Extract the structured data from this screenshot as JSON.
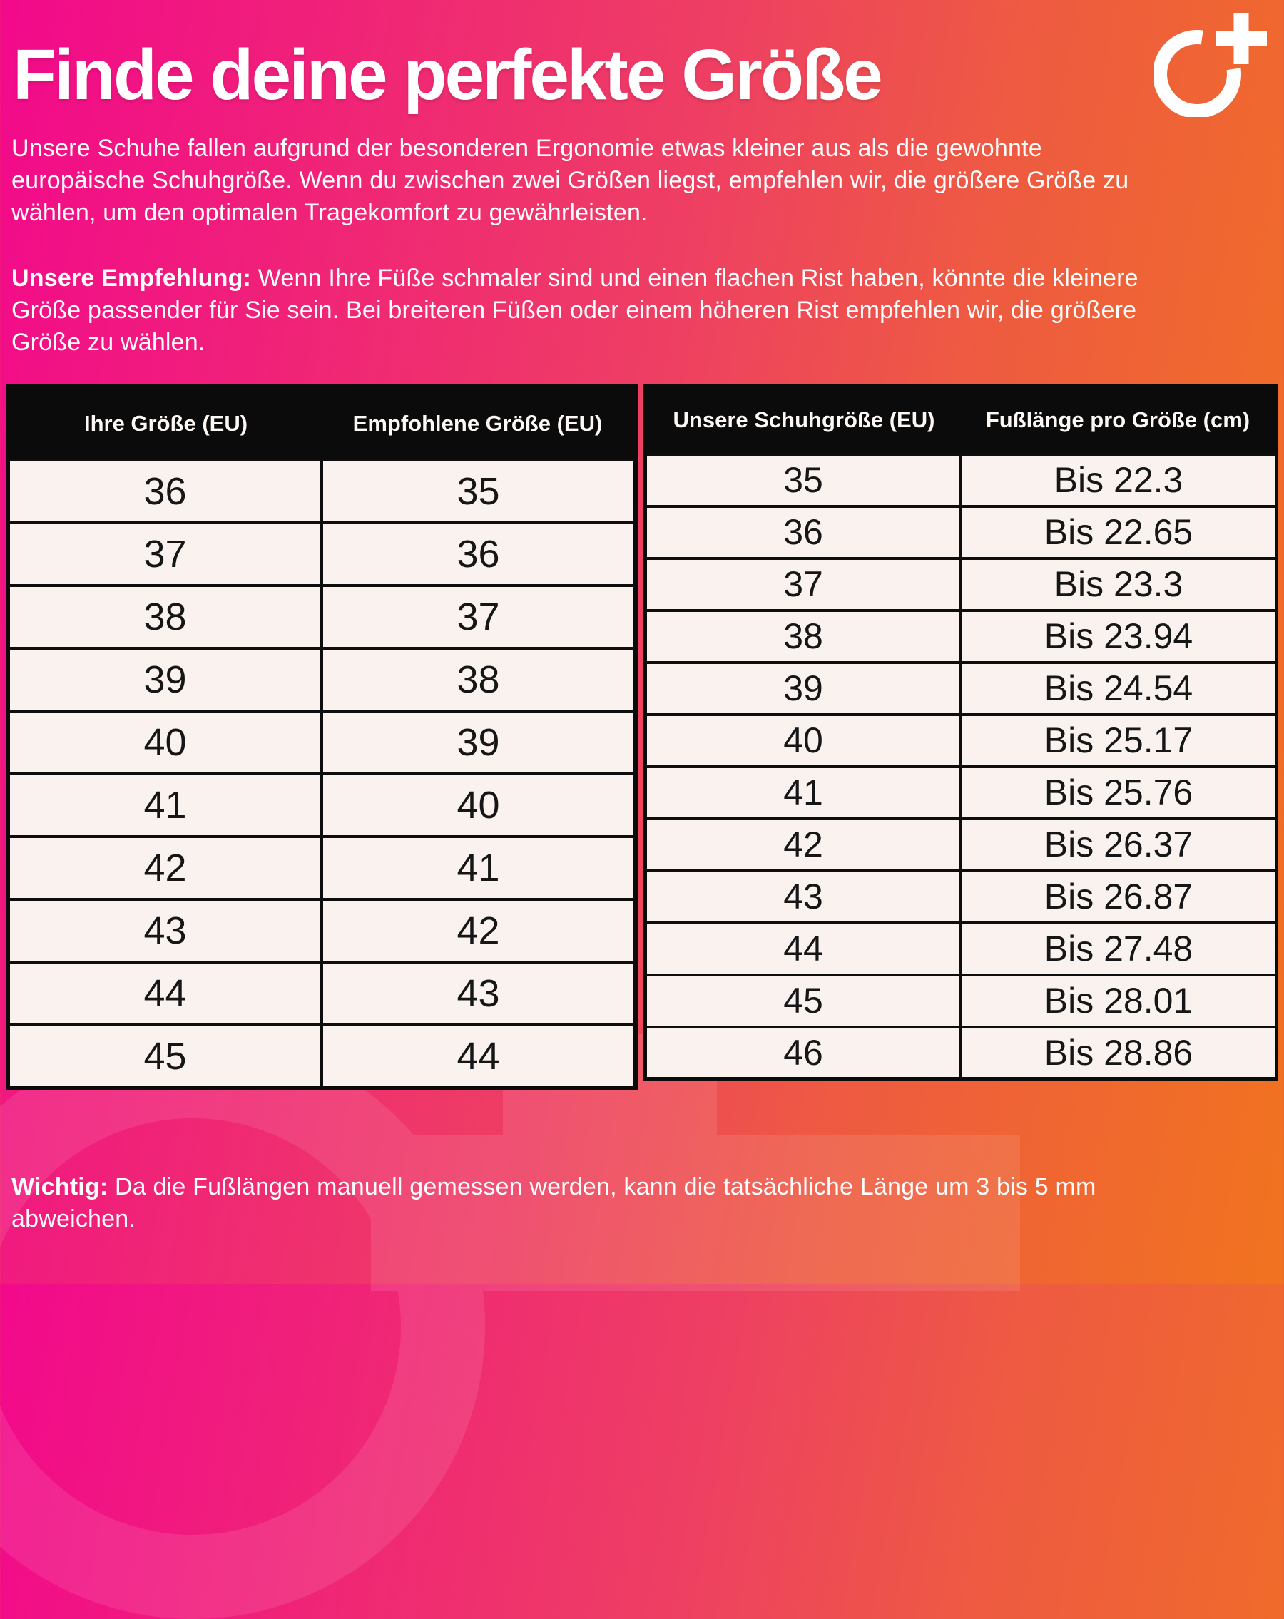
{
  "page": {
    "title": "Finde deine perfekte Größe",
    "intro": "Unsere Schuhe fallen aufgrund der besonderen Ergonomie etwas kleiner aus als die gewohnte europäische Schuhgröße. Wenn du zwischen zwei Größen liegst, empfehlen wir, die größere Größe zu wählen, um den optimalen Tragekomfort zu gewährleisten.",
    "recommendation_label": "Unsere Empfehlung:",
    "recommendation_text": " Wenn Ihre Füße schmaler sind und einen flachen Rist haben, könnte die kleinere Größe passender für Sie sein. Bei breiteren Füßen oder einem höheren Rist empfehlen wir, die größere Größe zu wählen.",
    "note_label": "Wichtig:",
    "note_text": " Da die Fußlängen manuell gemessen werden, kann die tatsächliche Länge um 3 bis 5 mm abweichen."
  },
  "logo": {
    "icon": "o-plus-logo",
    "color": "#ffffff"
  },
  "colors": {
    "gradient_start": "#f2098b",
    "gradient_mid": "#ee3f63",
    "gradient_end": "#f1731f",
    "table_header_bg": "#0b0b0b",
    "table_header_text": "#fdf8f4",
    "cell_bg": "#f9f2ee",
    "cell_text": "#161616",
    "cell_border": "#0e0e0e"
  },
  "size_table": {
    "headers": [
      "Ihre Größe (EU)",
      "Empfohlene Größe (EU)"
    ],
    "rows": [
      [
        "36",
        "35"
      ],
      [
        "37",
        "36"
      ],
      [
        "38",
        "37"
      ],
      [
        "39",
        "38"
      ],
      [
        "40",
        "39"
      ],
      [
        "41",
        "40"
      ],
      [
        "42",
        "41"
      ],
      [
        "43",
        "42"
      ],
      [
        "44",
        "43"
      ],
      [
        "45",
        "44"
      ]
    ]
  },
  "length_table": {
    "headers": [
      "Unsere Schuhgröße (EU)",
      "Fußlänge pro Größe (cm)"
    ],
    "rows": [
      [
        "35",
        "Bis 22.3"
      ],
      [
        "36",
        "Bis 22.65"
      ],
      [
        "37",
        "Bis 23.3"
      ],
      [
        "38",
        "Bis 23.94"
      ],
      [
        "39",
        "Bis 24.54"
      ],
      [
        "40",
        "Bis 25.17"
      ],
      [
        "41",
        "Bis 25.76"
      ],
      [
        "42",
        "Bis 26.37"
      ],
      [
        "43",
        "Bis 26.87"
      ],
      [
        "44",
        "Bis 27.48"
      ],
      [
        "45",
        "Bis 28.01"
      ],
      [
        "46",
        "Bis 28.86"
      ]
    ]
  }
}
